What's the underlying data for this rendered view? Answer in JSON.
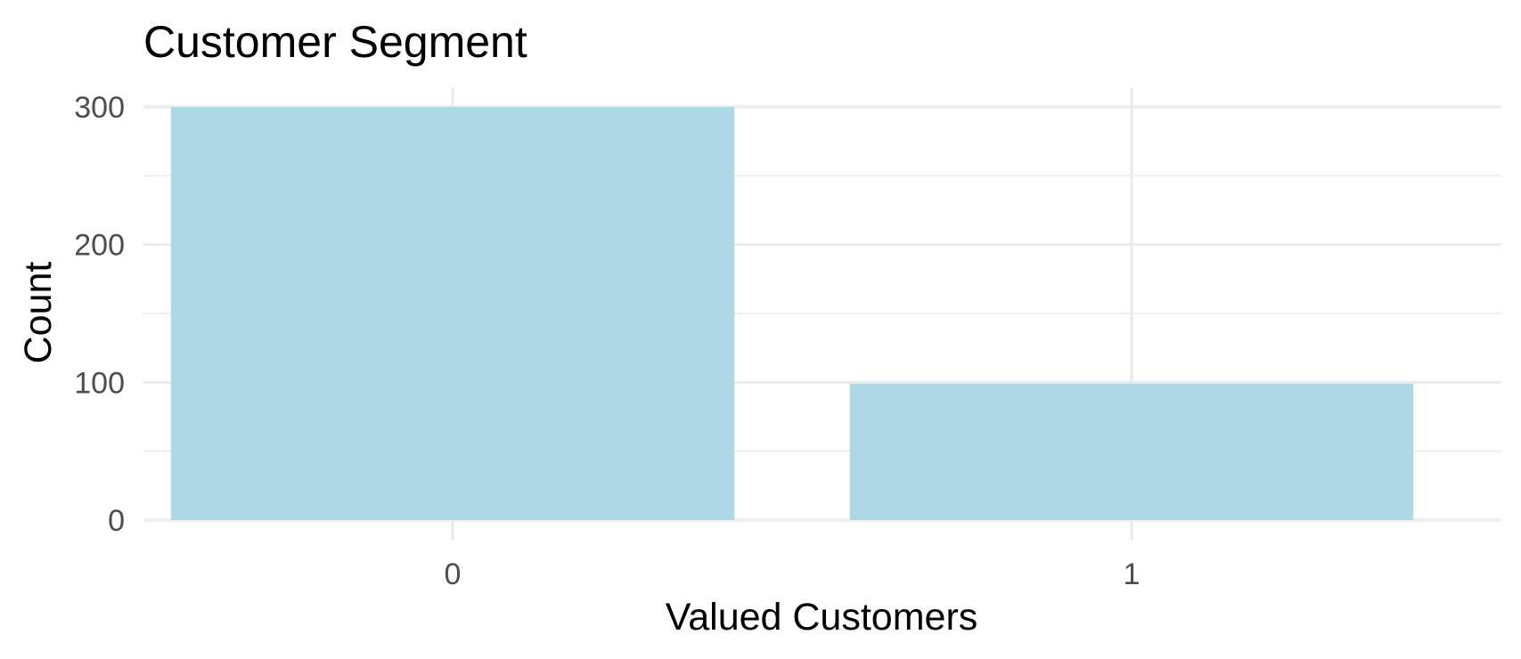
{
  "chart_data": {
    "type": "bar",
    "title": "Customer Segment",
    "xlabel": "Valued Customers",
    "ylabel": "Count",
    "categories": [
      "0",
      "1"
    ],
    "values": [
      300,
      99
    ],
    "ylim": [
      0,
      300
    ],
    "yticks": [
      0,
      100,
      200,
      300
    ],
    "grid": true,
    "bar_color": "#add8e6",
    "grid_color": "#ebebeb"
  }
}
